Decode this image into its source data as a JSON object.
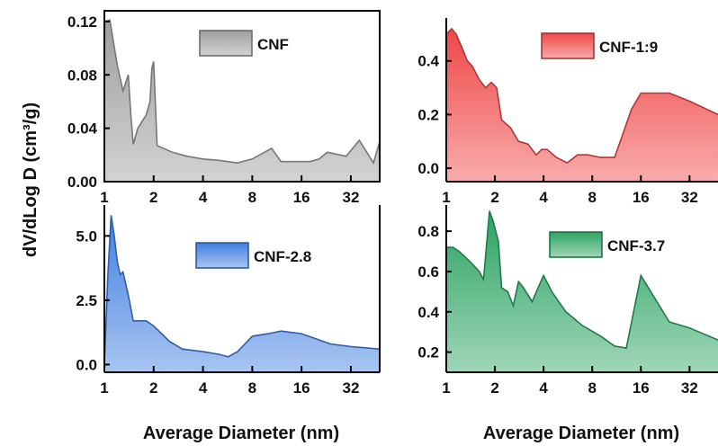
{
  "y_axis_label": "dV/dLog D (cm³/g)",
  "x_axis_label": "Average Diameter (nm)",
  "chart_data": [
    {
      "type": "area",
      "name": "CNF",
      "color": "#9e9e9e",
      "legend_position": "top-right",
      "x_log2": true,
      "xlim": [
        1,
        48
      ],
      "ylim": [
        0,
        0.128
      ],
      "x_ticks": [
        1,
        2,
        4,
        8,
        16,
        32
      ],
      "y_ticks": [
        0.0,
        0.04,
        0.08,
        0.12
      ],
      "y_tick_labels": [
        "0.00",
        "0.04",
        "0.08",
        "0.12"
      ],
      "x": [
        1.0,
        1.08,
        1.2,
        1.3,
        1.4,
        1.45,
        1.5,
        1.6,
        1.8,
        1.9,
        1.95,
        2.0,
        2.1,
        2.6,
        3.2,
        4.0,
        5.0,
        6.5,
        8.0,
        10.5,
        12.0,
        16.0,
        18.0,
        20.5,
        23.0,
        30.0,
        36.0,
        44.0,
        48.0
      ],
      "y": [
        0.12,
        0.121,
        0.087,
        0.068,
        0.08,
        0.05,
        0.028,
        0.04,
        0.05,
        0.06,
        0.085,
        0.09,
        0.027,
        0.022,
        0.019,
        0.017,
        0.016,
        0.014,
        0.017,
        0.025,
        0.015,
        0.015,
        0.015,
        0.017,
        0.022,
        0.019,
        0.031,
        0.014,
        0.03
      ]
    },
    {
      "type": "area",
      "name": "CNF-1:9",
      "color": "#ef4747",
      "legend_position": "top-right",
      "x_log2": true,
      "xlim": [
        1,
        48
      ],
      "ylim": [
        -0.05,
        0.56
      ],
      "x_ticks": [
        1,
        2,
        4,
        8,
        16,
        32
      ],
      "y_ticks": [
        0.0,
        0.2,
        0.4
      ],
      "y_tick_labels": [
        "0.0",
        "0.2",
        "0.4"
      ],
      "x": [
        1.0,
        1.08,
        1.15,
        1.25,
        1.35,
        1.45,
        1.6,
        1.75,
        1.9,
        2.05,
        2.2,
        2.5,
        2.8,
        3.2,
        3.6,
        3.9,
        4.2,
        4.8,
        5.6,
        6.5,
        7.5,
        9.0,
        11.0,
        14.0,
        16.0,
        24.0,
        32.0,
        48.0
      ],
      "y": [
        0.5,
        0.52,
        0.5,
        0.45,
        0.4,
        0.38,
        0.33,
        0.3,
        0.32,
        0.3,
        0.18,
        0.15,
        0.1,
        0.09,
        0.05,
        0.07,
        0.07,
        0.04,
        0.02,
        0.05,
        0.05,
        0.04,
        0.04,
        0.22,
        0.28,
        0.28,
        0.25,
        0.2
      ]
    },
    {
      "type": "area",
      "name": "CNF-2.8",
      "color": "#3f7fe0",
      "legend_position": "top-right",
      "x_log2": true,
      "xlim": [
        1,
        48
      ],
      "ylim": [
        -0.3,
        6.2
      ],
      "x_ticks": [
        1,
        2,
        4,
        8,
        16,
        32
      ],
      "y_ticks": [
        0.0,
        2.5,
        5.0
      ],
      "y_tick_labels": [
        "0.0",
        "2.5",
        "5.0"
      ],
      "x": [
        1.0,
        1.05,
        1.1,
        1.15,
        1.2,
        1.25,
        1.3,
        1.4,
        1.5,
        1.6,
        1.8,
        2.0,
        2.5,
        3.0,
        4.0,
        5.0,
        5.7,
        6.5,
        8.0,
        10.0,
        12.0,
        16.0,
        24.0,
        32.0,
        48.0
      ],
      "y": [
        0.0,
        3.5,
        5.8,
        5.0,
        4.0,
        3.5,
        3.6,
        2.7,
        1.7,
        1.7,
        1.7,
        1.5,
        0.9,
        0.6,
        0.5,
        0.4,
        0.3,
        0.5,
        1.1,
        1.2,
        1.3,
        1.2,
        0.8,
        0.7,
        0.6
      ]
    },
    {
      "type": "area",
      "name": "CNF-3.7",
      "color": "#2ba362",
      "legend_position": "top-right",
      "x_log2": true,
      "xlim": [
        1,
        48
      ],
      "ylim": [
        0.1,
        0.93
      ],
      "x_ticks": [
        1,
        2,
        4,
        8,
        16,
        32
      ],
      "y_ticks": [
        0.2,
        0.4,
        0.6,
        0.8
      ],
      "y_tick_labels": [
        "0.2",
        "0.4",
        "0.6",
        "0.8"
      ],
      "x": [
        1.0,
        1.1,
        1.2,
        1.4,
        1.6,
        1.7,
        1.85,
        1.95,
        2.1,
        2.2,
        2.4,
        2.6,
        2.8,
        3.0,
        3.4,
        3.7,
        4.0,
        4.5,
        5.5,
        7.0,
        9.0,
        11.0,
        13.0,
        16.0,
        24.0,
        32.0,
        48.0
      ],
      "y": [
        0.72,
        0.72,
        0.7,
        0.65,
        0.6,
        0.56,
        0.9,
        0.85,
        0.75,
        0.52,
        0.5,
        0.43,
        0.55,
        0.52,
        0.45,
        0.52,
        0.58,
        0.5,
        0.4,
        0.33,
        0.28,
        0.23,
        0.22,
        0.58,
        0.35,
        0.32,
        0.26
      ]
    }
  ]
}
